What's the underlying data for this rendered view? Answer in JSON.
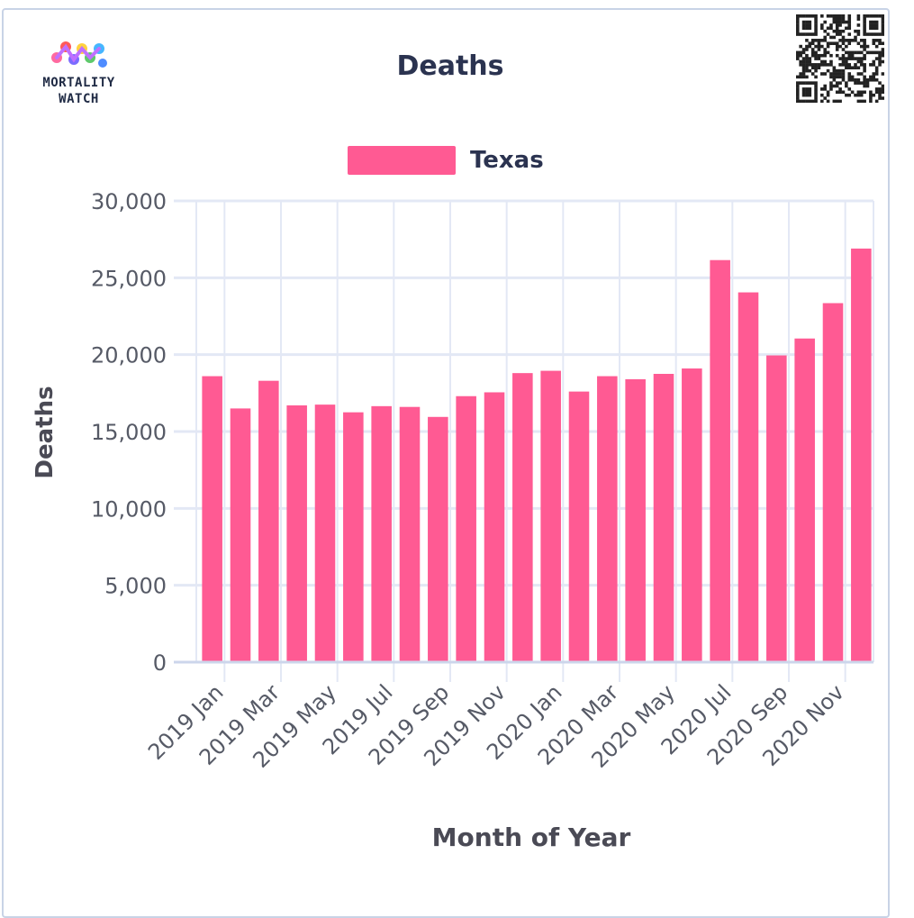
{
  "brand": {
    "logo_line1": "MORTALITY",
    "logo_line2": "WATCH"
  },
  "chart_data": {
    "type": "bar",
    "title": "Deaths",
    "xlabel": "Month of Year",
    "ylabel": "Deaths",
    "ylim": [
      0,
      30000
    ],
    "yticks": [
      0,
      5000,
      10000,
      15000,
      20000,
      25000,
      30000
    ],
    "ytick_labels": [
      "0",
      "5,000",
      "10,000",
      "15,000",
      "20,000",
      "25,000",
      "30,000"
    ],
    "categories": [
      "2019 Jan",
      "2019 Feb",
      "2019 Mar",
      "2019 Apr",
      "2019 May",
      "2019 Jun",
      "2019 Jul",
      "2019 Aug",
      "2019 Sep",
      "2019 Oct",
      "2019 Nov",
      "2019 Dec",
      "2020 Jan",
      "2020 Feb",
      "2020 Mar",
      "2020 Apr",
      "2020 May",
      "2020 Jun",
      "2020 Jul",
      "2020 Aug",
      "2020 Sep",
      "2020 Oct",
      "2020 Nov",
      "2020 Dec"
    ],
    "xtick_labels": [
      "2019 Jan",
      "2019 Mar",
      "2019 May",
      "2019 Jul",
      "2019 Sep",
      "2019 Nov",
      "2020 Jan",
      "2020 Mar",
      "2020 May",
      "2020 Jul",
      "2020 Sep",
      "2020 Nov"
    ],
    "series": [
      {
        "name": "Texas",
        "values": [
          18600,
          16500,
          18300,
          16700,
          16750,
          16250,
          16650,
          16600,
          15950,
          17300,
          17550,
          18800,
          18950,
          17600,
          18600,
          18400,
          18750,
          19100,
          26150,
          24050,
          19950,
          21050,
          23350,
          26900
        ]
      }
    ],
    "grid": true,
    "legend_position": "top-center",
    "colors": {
      "bar": "#ff5a93",
      "grid": "#e3e8f5",
      "axis": "#ccd6eb"
    }
  }
}
